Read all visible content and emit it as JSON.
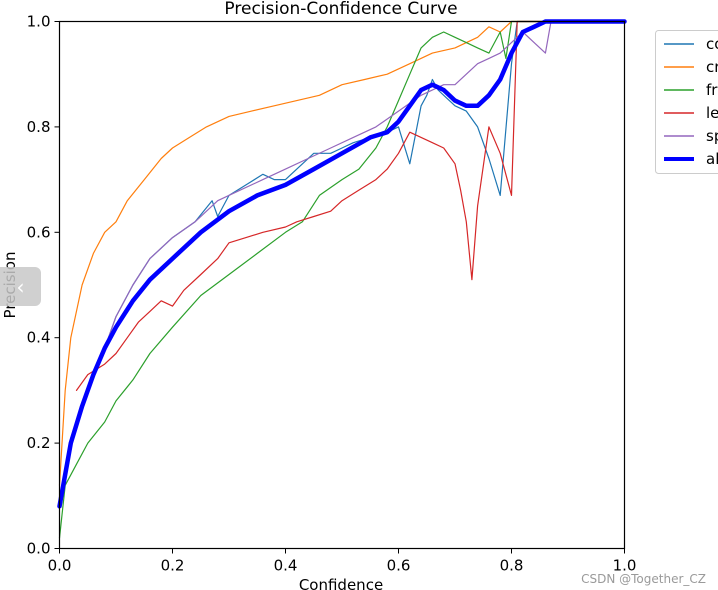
{
  "chart_data": {
    "type": "line",
    "title": "Precision-Confidence Curve",
    "xlabel": "Confidence",
    "ylabel": "Precision",
    "xlim": [
      0.0,
      1.0
    ],
    "ylim": [
      0.0,
      1.0
    ],
    "x_ticks": [
      "0.0",
      "0.2",
      "0.4",
      "0.6",
      "0.8",
      "1.0"
    ],
    "y_ticks": [
      "0.0",
      "0.2",
      "0.4",
      "0.6",
      "0.8",
      "1.0"
    ],
    "grid": false,
    "legend_position": "outside-top-right",
    "series": [
      {
        "name": "co",
        "color": "#1f77b4",
        "width": 1.2,
        "x": [
          0.0,
          0.02,
          0.05,
          0.08,
          0.1,
          0.13,
          0.16,
          0.2,
          0.24,
          0.27,
          0.28,
          0.3,
          0.33,
          0.36,
          0.38,
          0.4,
          0.42,
          0.45,
          0.48,
          0.5,
          0.52,
          0.55,
          0.58,
          0.6,
          0.62,
          0.64,
          0.65,
          0.66,
          0.67,
          0.68,
          0.7,
          0.72,
          0.74,
          0.76,
          0.78,
          0.8,
          0.81,
          0.86,
          1.0
        ],
        "y": [
          0.08,
          0.2,
          0.3,
          0.38,
          0.44,
          0.5,
          0.55,
          0.59,
          0.62,
          0.66,
          0.63,
          0.67,
          0.69,
          0.71,
          0.7,
          0.7,
          0.72,
          0.75,
          0.75,
          0.76,
          0.77,
          0.78,
          0.79,
          0.8,
          0.73,
          0.84,
          0.86,
          0.89,
          0.87,
          0.86,
          0.84,
          0.83,
          0.8,
          0.74,
          0.67,
          0.92,
          1.0,
          1.0,
          1.0
        ]
      },
      {
        "name": "cr",
        "color": "#ff7f0e",
        "width": 1.2,
        "x": [
          0.0,
          0.01,
          0.02,
          0.04,
          0.06,
          0.08,
          0.1,
          0.12,
          0.15,
          0.18,
          0.2,
          0.23,
          0.26,
          0.3,
          0.34,
          0.38,
          0.42,
          0.46,
          0.5,
          0.54,
          0.58,
          0.62,
          0.66,
          0.7,
          0.74,
          0.76,
          0.78,
          0.8,
          1.0
        ],
        "y": [
          0.12,
          0.3,
          0.4,
          0.5,
          0.56,
          0.6,
          0.62,
          0.66,
          0.7,
          0.74,
          0.76,
          0.78,
          0.8,
          0.82,
          0.83,
          0.84,
          0.85,
          0.86,
          0.88,
          0.89,
          0.9,
          0.92,
          0.94,
          0.95,
          0.97,
          0.99,
          0.98,
          1.0,
          1.0
        ]
      },
      {
        "name": "fr",
        "color": "#2ca02c",
        "width": 1.2,
        "x": [
          0.0,
          0.01,
          0.03,
          0.05,
          0.08,
          0.1,
          0.13,
          0.16,
          0.2,
          0.25,
          0.3,
          0.35,
          0.4,
          0.43,
          0.46,
          0.5,
          0.53,
          0.56,
          0.58,
          0.6,
          0.62,
          0.64,
          0.65,
          0.66,
          0.68,
          0.7,
          0.72,
          0.74,
          0.76,
          0.78,
          0.79,
          0.8,
          1.0
        ],
        "y": [
          0.02,
          0.12,
          0.16,
          0.2,
          0.24,
          0.28,
          0.32,
          0.37,
          0.42,
          0.48,
          0.52,
          0.56,
          0.6,
          0.62,
          0.67,
          0.7,
          0.72,
          0.76,
          0.8,
          0.85,
          0.9,
          0.95,
          0.96,
          0.97,
          0.98,
          0.97,
          0.96,
          0.95,
          0.94,
          0.98,
          0.93,
          1.0,
          1.0
        ]
      },
      {
        "name": "le",
        "color": "#d62728",
        "width": 1.2,
        "x": [
          0.03,
          0.05,
          0.08,
          0.1,
          0.12,
          0.14,
          0.16,
          0.18,
          0.2,
          0.22,
          0.25,
          0.28,
          0.3,
          0.33,
          0.36,
          0.4,
          0.42,
          0.45,
          0.48,
          0.5,
          0.53,
          0.56,
          0.58,
          0.6,
          0.62,
          0.64,
          0.66,
          0.68,
          0.7,
          0.71,
          0.72,
          0.73,
          0.74,
          0.76,
          0.78,
          0.8,
          0.81,
          1.0
        ],
        "y": [
          0.3,
          0.33,
          0.35,
          0.37,
          0.4,
          0.43,
          0.45,
          0.47,
          0.46,
          0.49,
          0.52,
          0.55,
          0.58,
          0.59,
          0.6,
          0.61,
          0.62,
          0.63,
          0.64,
          0.66,
          0.68,
          0.7,
          0.72,
          0.75,
          0.79,
          0.78,
          0.77,
          0.76,
          0.73,
          0.68,
          0.62,
          0.51,
          0.65,
          0.8,
          0.75,
          0.67,
          1.0,
          1.0
        ]
      },
      {
        "name": "sp",
        "color": "#9467bd",
        "width": 1.2,
        "x": [
          0.0,
          0.02,
          0.05,
          0.08,
          0.1,
          0.13,
          0.16,
          0.2,
          0.24,
          0.28,
          0.32,
          0.36,
          0.4,
          0.44,
          0.48,
          0.52,
          0.56,
          0.6,
          0.64,
          0.68,
          0.7,
          0.72,
          0.74,
          0.76,
          0.78,
          0.8,
          0.82,
          0.84,
          0.86,
          0.87,
          1.0
        ],
        "y": [
          0.08,
          0.21,
          0.3,
          0.38,
          0.44,
          0.5,
          0.55,
          0.59,
          0.62,
          0.66,
          0.68,
          0.7,
          0.72,
          0.74,
          0.76,
          0.78,
          0.8,
          0.83,
          0.86,
          0.88,
          0.88,
          0.9,
          0.92,
          0.93,
          0.94,
          0.96,
          0.98,
          0.96,
          0.94,
          1.0,
          1.0
        ]
      },
      {
        "name": "al",
        "color": "#0000ff",
        "width": 4.5,
        "x": [
          0.0,
          0.02,
          0.04,
          0.06,
          0.08,
          0.1,
          0.13,
          0.16,
          0.2,
          0.25,
          0.3,
          0.35,
          0.4,
          0.45,
          0.5,
          0.55,
          0.58,
          0.6,
          0.62,
          0.64,
          0.66,
          0.68,
          0.7,
          0.72,
          0.74,
          0.76,
          0.78,
          0.8,
          0.82,
          0.84,
          0.86,
          0.88,
          1.0
        ],
        "y": [
          0.08,
          0.2,
          0.27,
          0.33,
          0.38,
          0.42,
          0.47,
          0.51,
          0.55,
          0.6,
          0.64,
          0.67,
          0.69,
          0.72,
          0.75,
          0.78,
          0.79,
          0.81,
          0.84,
          0.87,
          0.88,
          0.87,
          0.85,
          0.84,
          0.84,
          0.86,
          0.89,
          0.94,
          0.98,
          0.99,
          1.0,
          1.0,
          1.0
        ]
      }
    ]
  },
  "ui": {
    "collapse_glyph": "‹",
    "watermark": "CSDN @Together_CZ"
  }
}
